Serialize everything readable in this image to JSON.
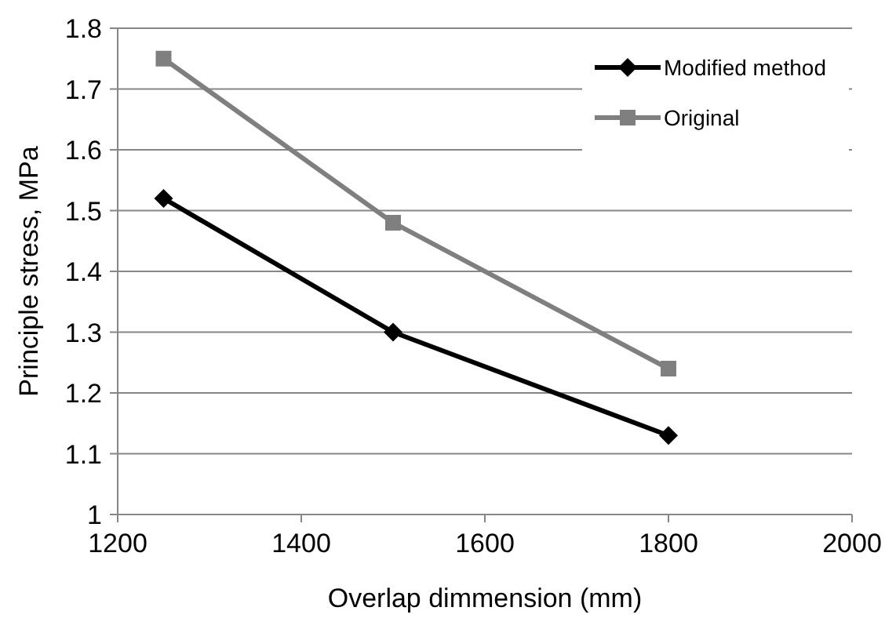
{
  "chart_data": {
    "type": "line",
    "xlabel": "Overlap dimmension (mm)",
    "ylabel": "Principle stress, MPa",
    "x": [
      1250,
      1500,
      1800
    ],
    "series": [
      {
        "name": "Modified method",
        "color": "#000000",
        "values": [
          1.52,
          1.3,
          1.13
        ],
        "marker": "diamond"
      },
      {
        "name": "Original",
        "color": "#7f7f7f",
        "values": [
          1.75,
          1.48,
          1.24
        ],
        "marker": "square"
      }
    ],
    "xlim": [
      1200,
      2000
    ],
    "xticks": [
      1200,
      1400,
      1600,
      1800,
      2000
    ],
    "ylim": [
      1,
      1.8
    ],
    "yticks": [
      {
        "value": 1,
        "label": "1"
      },
      {
        "value": 1.1,
        "label": "1.1"
      },
      {
        "value": 1.2,
        "label": "1.2"
      },
      {
        "value": 1.3,
        "label": "1.3"
      },
      {
        "value": 1.4,
        "label": "1.4"
      },
      {
        "value": 1.5,
        "label": "1.5"
      },
      {
        "value": 1.6,
        "label": "1.6"
      },
      {
        "value": 1.7,
        "label": "1.7"
      },
      {
        "value": 1.8,
        "label": "1.8"
      }
    ],
    "grid": "y",
    "legend": "top right",
    "line_style": "solid"
  }
}
